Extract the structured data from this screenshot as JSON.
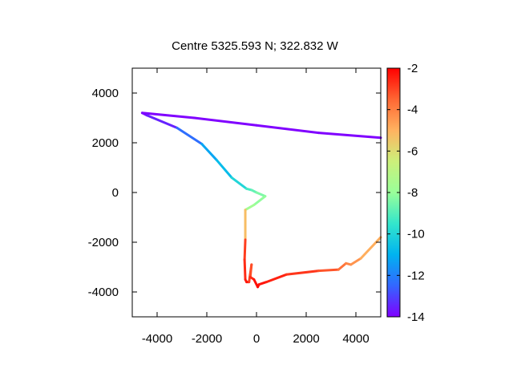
{
  "chart_data": {
    "type": "line",
    "title": "Centre 5325.593 N; 322.832  W",
    "xlabel": "",
    "ylabel": "",
    "xlim": [
      -5000,
      5000
    ],
    "ylim": [
      -5000,
      5000
    ],
    "x_ticks": [
      -4000,
      -2000,
      0,
      2000,
      4000
    ],
    "y_ticks": [
      -4000,
      -2000,
      0,
      2000,
      4000
    ],
    "x_tick_labels": [
      "-4000",
      "-2000",
      "0",
      "2000",
      "4000"
    ],
    "y_tick_labels": [
      "-4000",
      "-2000",
      "0",
      "2000",
      "4000"
    ],
    "grid": false,
    "colorbar": {
      "range": [
        -14,
        -2
      ],
      "ticks": [
        -2,
        -4,
        -6,
        -8,
        -10,
        -12,
        -14
      ],
      "tick_labels": [
        "-2",
        "-4",
        "-6",
        "-8",
        "-10",
        "-12",
        "-14"
      ],
      "palette": [
        "#8000ff",
        "#3366ff",
        "#00b3f0",
        "#33e6cc",
        "#99ff99",
        "#ccf07a",
        "#ffb360",
        "#ff6633",
        "#ff0000"
      ]
    },
    "series": [
      {
        "x": [
          5000,
          2500,
          0,
          -2500,
          -4600,
          -4400,
          -3200,
          -2200,
          -1600,
          -1000,
          -400,
          -200,
          0,
          350,
          -100,
          -450,
          -450,
          -480,
          -450,
          -400,
          -300,
          -200,
          -250,
          -100,
          50,
          100,
          400,
          1200,
          2500,
          3300,
          3600,
          3800,
          4200,
          5000
        ],
        "y": [
          2200,
          2400,
          2700,
          3000,
          3200,
          3100,
          2600,
          1950,
          1300,
          600,
          150,
          100,
          0,
          -150,
          -500,
          -700,
          -1900,
          -2700,
          -3500,
          -3600,
          -3600,
          -2900,
          -3400,
          -3500,
          -3800,
          -3700,
          -3600,
          -3300,
          -3150,
          -3100,
          -2850,
          -2900,
          -2650,
          -1800
        ],
        "c": [
          -14,
          -14,
          -14,
          -14,
          -14,
          -13.8,
          -13.2,
          -11.5,
          -11,
          -10.5,
          -9.5,
          -9,
          -8.6,
          -8.2,
          -8,
          -7.5,
          -3,
          -2.8,
          -2.5,
          -2.3,
          -2.3,
          -3.5,
          -2.8,
          -2.5,
          -2,
          -2.2,
          -2.4,
          -2.6,
          -3,
          -3.5,
          -4,
          -4.2,
          -4.6,
          -5.2
        ]
      }
    ]
  }
}
